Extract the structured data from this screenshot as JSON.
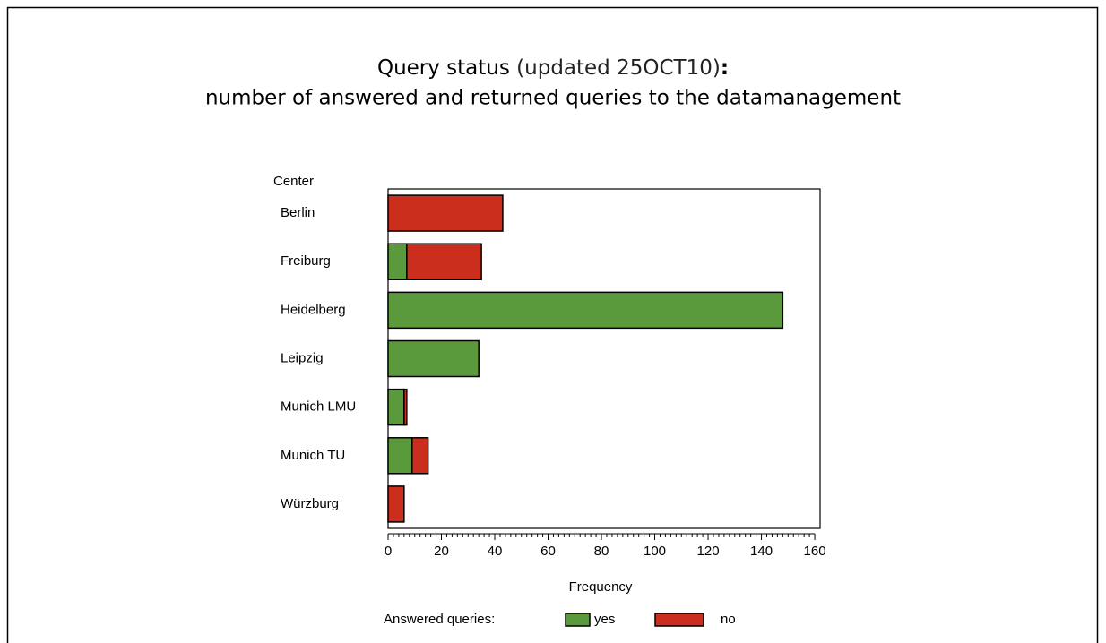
{
  "chart_data": {
    "type": "stacked_barh",
    "title": "Query status",
    "title_note": "(updated 25OCT10)",
    "title_colon": ":",
    "subtitle": "number of answered and returned queries to the datamanagement",
    "y_label": "Center",
    "x_label": "Frequency",
    "legend_title": "Answered queries:",
    "categories": [
      "Berlin",
      "Freiburg",
      "Heidelberg",
      "Leipzig",
      "Munich LMU",
      "Munich TU",
      "Würzburg"
    ],
    "series": [
      {
        "name": "yes",
        "color": "#5a9a3c",
        "values": [
          0,
          7,
          148,
          34,
          6,
          9,
          0
        ]
      },
      {
        "name": "no",
        "color": "#cc2e1e",
        "values": [
          43,
          28,
          0,
          0,
          1,
          6,
          6
        ]
      }
    ],
    "xlim": [
      0,
      162
    ],
    "xticks": [
      0,
      20,
      40,
      60,
      80,
      100,
      120,
      140,
      160
    ]
  }
}
